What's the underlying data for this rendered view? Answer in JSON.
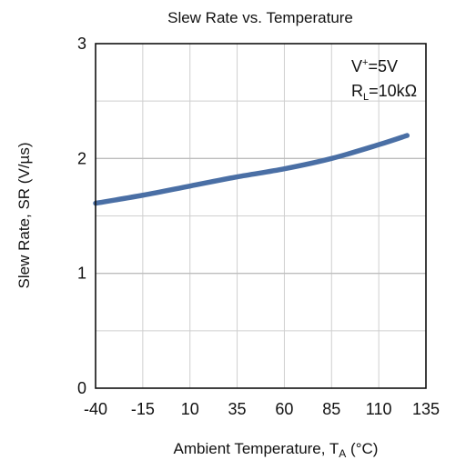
{
  "chart_data": {
    "type": "line",
    "title": "Slew Rate vs. Temperature",
    "xlabel": "Ambient Temperature, T",
    "xlabel_sub": "A",
    "xlabel_unit": " (°C)",
    "ylabel": "Slew Rate, SR (V/µs)",
    "xlim": [
      -40,
      135
    ],
    "ylim": [
      0,
      3
    ],
    "xticks": [
      -40,
      -15,
      10,
      35,
      60,
      85,
      110,
      135
    ],
    "yticks": [
      0,
      1,
      2,
      3
    ],
    "grid": true,
    "annotations": {
      "vplus_main": "V",
      "vplus_sup": "+",
      "vplus_value": "=5V",
      "rl_main": "R",
      "rl_sub": "L",
      "rl_value": "=10kΩ"
    },
    "series": [
      {
        "color": "#4a6fa5",
        "x": [
          -40,
          -15,
          10,
          35,
          60,
          85,
          110,
          125
        ],
        "y": [
          1.61,
          1.68,
          1.76,
          1.84,
          1.91,
          2.0,
          2.12,
          2.2
        ]
      }
    ]
  }
}
